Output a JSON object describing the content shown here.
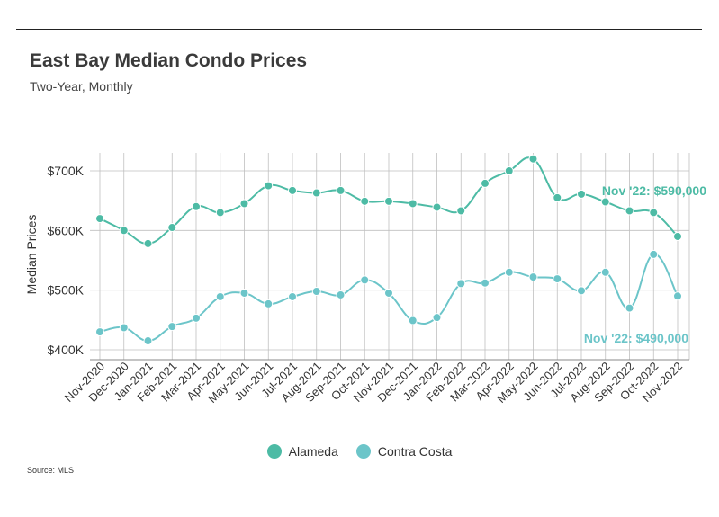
{
  "header": {
    "title": "East Bay Median Condo Prices",
    "subtitle": "Two-Year, Monthly"
  },
  "footer": {
    "source": "Source: MLS"
  },
  "colors": {
    "alameda": "#4dbba5",
    "contra_costa": "#6cc5c9",
    "grid": "#bfbfbf"
  },
  "chart_data": {
    "type": "line",
    "title": "East Bay Median Condo Prices",
    "subtitle": "Two-Year, Monthly",
    "xlabel": "",
    "ylabel": "Median Prices",
    "ylim": [
      400000,
      700000
    ],
    "yticks": [
      400000,
      500000,
      600000,
      700000
    ],
    "ytick_labels": [
      "$400K",
      "$500K",
      "$600K",
      "$700K"
    ],
    "grid": true,
    "legend_position": "bottom",
    "categories": [
      "Nov-2020",
      "Dec-2020",
      "Jan-2021",
      "Feb-2021",
      "Mar-2021",
      "Apr-2021",
      "May-2021",
      "Jun-2021",
      "Jul-2021",
      "Aug-2021",
      "Sep-2021",
      "Oct-2021",
      "Nov-2021",
      "Dec-2021",
      "Jan-2022",
      "Feb-2022",
      "Mar-2022",
      "Apr-2022",
      "May-2022",
      "Jun-2022",
      "Jul-2022",
      "Aug-2022",
      "Sep-2022",
      "Oct-2022",
      "Nov-2022"
    ],
    "series": [
      {
        "name": "Alameda",
        "color": "#4dbba5",
        "values": [
          620000,
          600000,
          578000,
          605000,
          640000,
          630000,
          645000,
          675000,
          667000,
          663000,
          667000,
          649000,
          649000,
          645000,
          639000,
          633000,
          679000,
          700000,
          720000,
          655000,
          661000,
          648000,
          633000,
          630000,
          590000
        ]
      },
      {
        "name": "Contra Costa",
        "color": "#6cc5c9",
        "values": [
          430000,
          437000,
          415000,
          439000,
          453000,
          489000,
          495000,
          477000,
          489000,
          498000,
          492000,
          517000,
          495000,
          449000,
          454000,
          511000,
          512000,
          530000,
          522000,
          519000,
          499000,
          530000,
          470000,
          560000,
          490000
        ]
      }
    ],
    "annotations": [
      {
        "series": "Alameda",
        "text": "Nov '22: $590,000"
      },
      {
        "series": "Contra Costa",
        "text": "Nov '22: $490,000"
      }
    ]
  }
}
